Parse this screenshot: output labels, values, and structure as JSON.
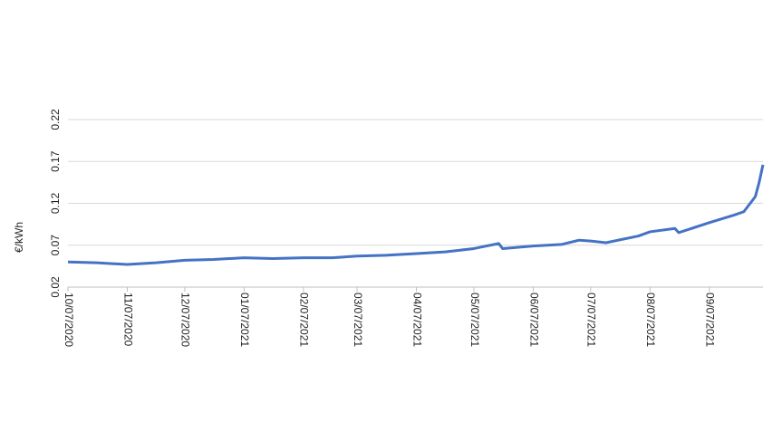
{
  "chart_data": {
    "type": "line",
    "ylabel": "€/kWh",
    "x": [
      "10/07/2020",
      "10/22/2020",
      "11/07/2020",
      "11/22/2020",
      "12/07/2020",
      "12/22/2020",
      "01/07/2021",
      "01/22/2021",
      "02/07/2021",
      "02/22/2021",
      "03/07/2021",
      "03/22/2021",
      "04/07/2021",
      "04/22/2021",
      "05/07/2021",
      "05/20/2021",
      "05/22/2021",
      "06/07/2021",
      "06/22/2021",
      "07/01/2021",
      "07/07/2021",
      "07/15/2021",
      "08/01/2021",
      "08/07/2021",
      "08/20/2021",
      "08/22/2021",
      "09/07/2021",
      "09/20/2021",
      "09/25/2021",
      "10/01/2021",
      "10/03/2021",
      "10/05/2021"
    ],
    "series": [
      {
        "color": "#4472c4",
        "values": [
          0.05,
          0.049,
          0.047,
          0.049,
          0.052,
          0.053,
          0.055,
          0.054,
          0.055,
          0.055,
          0.057,
          0.058,
          0.06,
          0.062,
          0.066,
          0.072,
          0.066,
          0.069,
          0.071,
          0.076,
          0.075,
          0.073,
          0.081,
          0.086,
          0.09,
          0.085,
          0.097,
          0.106,
          0.11,
          0.128,
          0.145,
          0.166
        ]
      }
    ],
    "xlim": [
      "10/07/2020",
      "10/05/2021"
    ],
    "xticks": [
      "10/07/2020",
      "11/07/2020",
      "12/07/2020",
      "01/07/2021",
      "02/07/2021",
      "03/07/2021",
      "04/07/2021",
      "05/07/2021",
      "06/07/2021",
      "07/07/2021",
      "08/07/2021",
      "09/07/2021"
    ],
    "ylim": [
      0.02,
      0.22
    ],
    "yticks": [
      0.02,
      0.07,
      0.12,
      0.17,
      0.22
    ],
    "grid": true
  }
}
